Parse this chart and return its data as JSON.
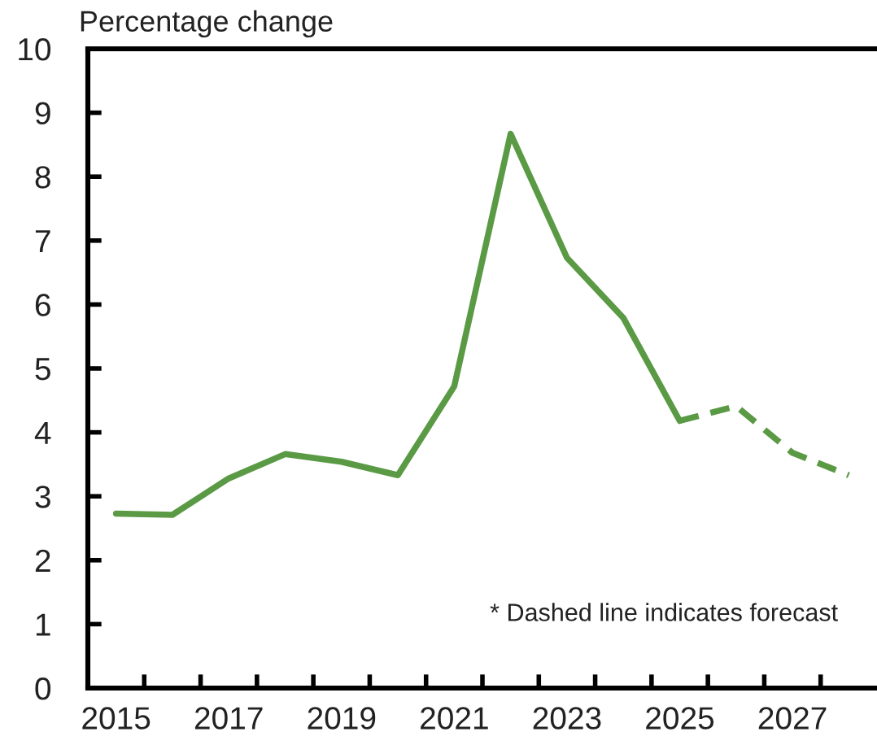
{
  "chart_data": {
    "type": "line",
    "ylabel": "Percentage change",
    "categories": [
      "2015",
      null,
      "2017",
      null,
      "2019",
      null,
      "2021",
      null,
      "2023",
      null,
      "2025",
      null,
      "2027",
      null
    ],
    "series": [
      {
        "color": "#5a9a45",
        "line_style": "solid",
        "values": [
          2.73,
          2.71,
          3.28,
          3.66,
          3.54,
          3.33,
          4.72,
          8.67,
          6.73,
          5.79,
          4.18,
          null,
          null,
          null
        ]
      },
      {
        "color": "#5a9a45",
        "line_style": "dashed",
        "values": [
          null,
          null,
          null,
          null,
          null,
          null,
          null,
          null,
          null,
          null,
          4.18,
          4.41,
          3.68,
          3.33
        ]
      }
    ],
    "ylim": [
      0,
      10
    ],
    "yticks": [
      0,
      1,
      2,
      3,
      4,
      5,
      6,
      7,
      8,
      9,
      10
    ],
    "annotations": [
      "* Dashed line indicates forecast"
    ]
  }
}
